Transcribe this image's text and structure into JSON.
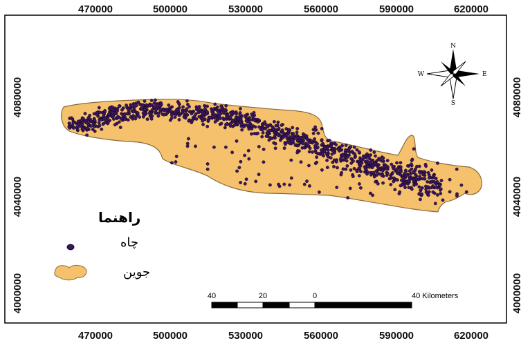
{
  "axes": {
    "x_ticks": [
      "470000",
      "500000",
      "530000",
      "560000",
      "590000",
      "620000"
    ],
    "y_ticks": [
      "4080000",
      "4040000",
      "4000000"
    ]
  },
  "legend": {
    "title": "راهنما",
    "items": [
      {
        "label": "چاه",
        "symbol": "point",
        "color": "#3d1660"
      },
      {
        "label": "جوین",
        "symbol": "polygon",
        "color": "#f5c16c"
      }
    ]
  },
  "north_arrow": {
    "n": "N",
    "s": "S",
    "e": "E",
    "w": "W"
  },
  "scale_bar": {
    "labels": [
      "40",
      "20",
      "0",
      "40 Kilometers"
    ]
  },
  "colors": {
    "region_fill": "#f5c16c",
    "region_stroke": "#8a6a3a",
    "well_fill": "#3d1660",
    "frame": "#000000"
  }
}
